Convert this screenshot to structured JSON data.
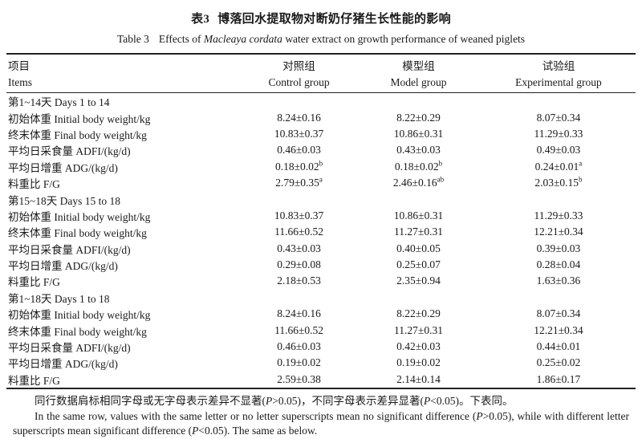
{
  "title": {
    "zh_label": "表3",
    "zh_text": "博落回水提取物对断奶仔猪生长性能的影响",
    "en_label": "Table 3",
    "en_prefix": "Effects of ",
    "en_italic": "Macleaya cordata",
    "en_suffix": " water extract on growth performance of weaned piglets"
  },
  "table": {
    "columns": [
      {
        "zh": "项目",
        "en": "Items"
      },
      {
        "zh": "对照组",
        "en": "Control group"
      },
      {
        "zh": "模型组",
        "en": "Model group"
      },
      {
        "zh": "试验组",
        "en": "Experimental group"
      }
    ],
    "sections": [
      {
        "header": "第1~14天 Days 1 to 14",
        "rows": [
          {
            "item": "初始体重 Initial body weight/kg",
            "v1": "8.24±0.16",
            "v2": "8.22±0.29",
            "v3": "8.07±0.34"
          },
          {
            "item": "终末体重 Final body weight/kg",
            "v1": "10.83±0.37",
            "v2": "10.86±0.31",
            "v3": "11.29±0.33"
          },
          {
            "item": "平均日采食量 ADFI/(kg/d)",
            "v1": "0.46±0.03",
            "v2": "0.43±0.03",
            "v3": "0.49±0.03"
          },
          {
            "item": "平均日增重 ADG/(kg/d)",
            "v1": "0.18±0.02",
            "s1": "b",
            "v2": "0.18±0.02",
            "s2": "b",
            "v3": "0.24±0.01",
            "s3": "a"
          },
          {
            "item": "料重比 F/G",
            "v1": "2.79±0.35",
            "s1": "a",
            "v2": "2.46±0.16",
            "s2": "ab",
            "v3": "2.03±0.15",
            "s3": "b"
          }
        ]
      },
      {
        "header": "第15~18天 Days 15 to 18",
        "rows": [
          {
            "item": "初始体重 Initial body weight/kg",
            "v1": "10.83±0.37",
            "v2": "10.86±0.31",
            "v3": "11.29±0.33"
          },
          {
            "item": "终末体重 Final body weight/kg",
            "v1": "11.66±0.52",
            "v2": "11.27±0.31",
            "v3": "12.21±0.34"
          },
          {
            "item": "平均日采食量 ADFI/(kg/d)",
            "v1": "0.43±0.03",
            "v2": "0.40±0.05",
            "v3": "0.39±0.03"
          },
          {
            "item": "平均日增重 ADG/(kg/d)",
            "v1": "0.29±0.08",
            "v2": "0.25±0.07",
            "v3": "0.28±0.04"
          },
          {
            "item": "料重比 F/G",
            "v1": "2.18±0.53",
            "v2": "2.35±0.94",
            "v3": "1.63±0.36"
          }
        ]
      },
      {
        "header": "第1~18天 Days 1 to 18",
        "rows": [
          {
            "item": "初始体重 Initial body weight/kg",
            "v1": "8.24±0.16",
            "v2": "8.22±0.29",
            "v3": "8.07±0.34"
          },
          {
            "item": "终末体重 Final body weight/kg",
            "v1": "11.66±0.52",
            "v2": "11.27±0.31",
            "v3": "12.21±0.34"
          },
          {
            "item": "平均日采食量 ADFI/(kg/d)",
            "v1": "0.46±0.03",
            "v2": "0.42±0.03",
            "v3": "0.44±0.01"
          },
          {
            "item": "平均日增重 ADG/(kg/d)",
            "v1": "0.19±0.02",
            "v2": "0.19±0.02",
            "v3": "0.25±0.02"
          },
          {
            "item": "料重比 F/G",
            "v1": "2.59±0.38",
            "v2": "2.14±0.14",
            "v3": "1.86±0.17"
          }
        ]
      }
    ]
  },
  "notes": {
    "zh": {
      "p1": "同行数据肩标相同字母或无字母表示差异不显著(",
      "i1": "P",
      "p2": ">0.05)，不同字母表示差异显著(",
      "i2": "P",
      "p3": "<0.05)。下表同。"
    },
    "en": {
      "p1": "In the same row, values with the same letter or no letter superscripts mean no significant difference (",
      "i1": "P",
      "p2": ">0.05), while with different letter superscripts mean significant difference (",
      "i2": "P",
      "p3": "<0.05). The same as below."
    }
  }
}
